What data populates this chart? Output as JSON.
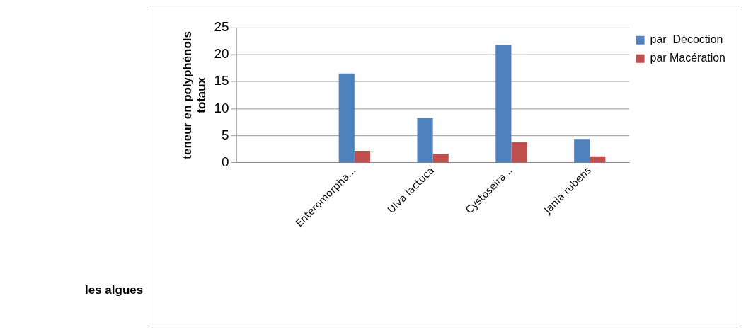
{
  "chart_data": {
    "type": "bar",
    "annotations": [
      "les algues"
    ],
    "ylabel": "teneur en polyphénols totaux",
    "categories": [
      null,
      "Enteromorpha...",
      "Ulva lactuca",
      "Cystoseira...",
      "Jania rubens"
    ],
    "series": [
      {
        "name": "par  Décoction",
        "color": "#4f81bd",
        "values": [
          null,
          16.5,
          8.3,
          21.8,
          4.4
        ]
      },
      {
        "name": "par Macération",
        "color": "#c0504d",
        "values": [
          null,
          2.2,
          1.7,
          3.8,
          1.2
        ]
      }
    ],
    "ylim": [
      0,
      25
    ],
    "yticks": [
      0,
      5,
      10,
      15,
      20,
      25
    ],
    "grid": "y",
    "legend": "right"
  }
}
